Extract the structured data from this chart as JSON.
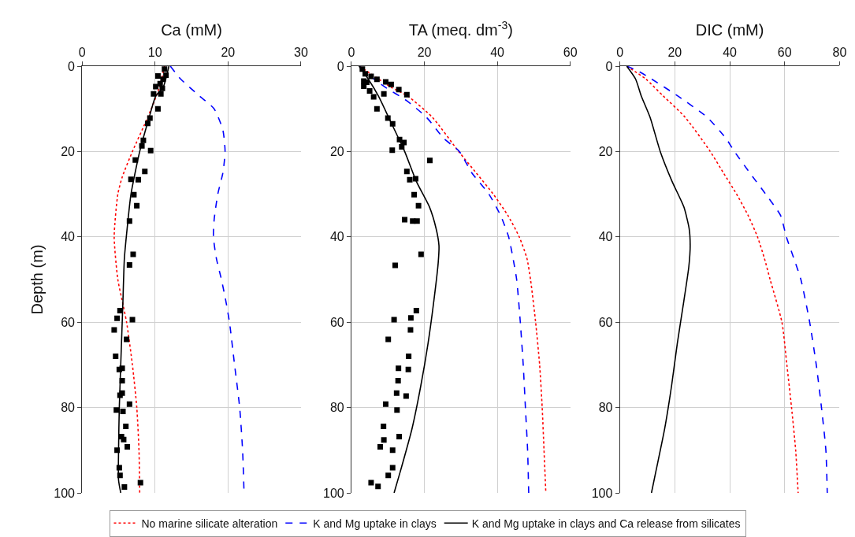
{
  "chart_data": [
    {
      "type": "line",
      "xlabel": "Ca (mM)",
      "ylabel": "Depth (m)",
      "xlim": [
        0,
        30
      ],
      "xticks": [
        0,
        10,
        20,
        30
      ],
      "ylim": [
        100,
        0
      ],
      "yticks": [
        0,
        20,
        40,
        60,
        80,
        100
      ],
      "grid": true,
      "legend": "bottom",
      "series": [
        {
          "name": "No marine silicate alteration",
          "color": "#ff0000",
          "line_style": "dotted",
          "x": [
            11.3,
            10.6,
            9.0,
            6.9,
            5.5,
            4.9,
            4.4,
            4.9,
            5.5,
            6.1,
            6.9,
            7.5,
            7.8,
            7.9
          ],
          "values": [
            0,
            5,
            12,
            20,
            26,
            30,
            40,
            50,
            55,
            60,
            70,
            80,
            90,
            100
          ]
        },
        {
          "name": "K and Mg uptake in clays",
          "color": "#0000ff",
          "line_style": "dashed",
          "x": [
            12.1,
            13.5,
            16.1,
            18.1,
            19.3,
            19.6,
            19.3,
            18.6,
            18.1,
            18.0,
            18.4,
            19.1,
            19.7,
            20.2,
            20.9,
            21.6,
            22.0,
            22.2
          ],
          "values": [
            0,
            3,
            7,
            10,
            15,
            20,
            25,
            30,
            36,
            40,
            45,
            50,
            55,
            60,
            70,
            80,
            90,
            100
          ]
        },
        {
          "name": "K and Mg uptake in clays and Ca release from silicates",
          "color": "#000000",
          "line_style": "solid",
          "x": [
            11.9,
            11.1,
            10.1,
            9.2,
            7.9,
            6.7,
            6.3,
            5.8,
            5.6,
            5.4,
            5.1,
            5.0,
            5.0,
            5.3
          ],
          "values": [
            0,
            5,
            7,
            12,
            20,
            30,
            36,
            45,
            55,
            65,
            80,
            90,
            97,
            100
          ]
        },
        {
          "type": "scatter",
          "color": "#000000",
          "marker": "square",
          "x": [
            11.3,
            11.5,
            10.4,
            11.1,
            10.7,
            10.1,
            11.0,
            9.8,
            10.8,
            10.4,
            9.3,
            9.0,
            8.4,
            8.2,
            9.4,
            7.3,
            8.6,
            6.7,
            7.7,
            7.1,
            7.5,
            6.5,
            7.0,
            6.5,
            5.2,
            4.8,
            6.9,
            4.4,
            6.1,
            4.6,
            5.1,
            5.5,
            5.5,
            5.2,
            5.5,
            6.5,
            4.7,
            5.6,
            6.0,
            5.4,
            5.7,
            6.2,
            4.8,
            5.1,
            5.2,
            8.0,
            5.8
          ],
          "values": [
            0.7,
            2.1,
            2.3,
            3.1,
            4.1,
            4.8,
            5.2,
            6.5,
            6.5,
            10,
            12.2,
            13.4,
            17.4,
            18.7,
            19.8,
            22,
            24.7,
            26.5,
            26.6,
            30.1,
            32.7,
            36.3,
            44.1,
            46.6,
            57.3,
            59.1,
            59.4,
            61.8,
            64,
            68,
            71.1,
            70.8,
            73.7,
            77.1,
            76.6,
            79.2,
            80.6,
            80.9,
            84.4,
            86.8,
            87.5,
            89.2,
            90,
            94.1,
            95.9,
            97.6,
            98.6
          ]
        }
      ]
    },
    {
      "type": "line",
      "xlabel": "TA (meq. dm$^{-3}$)",
      "xlim": [
        0,
        60
      ],
      "xticks": [
        0,
        20,
        40,
        60
      ],
      "ylim": [
        100,
        0
      ],
      "yticks": [
        0,
        20,
        40,
        60,
        80,
        100
      ],
      "grid": true,
      "series": [
        {
          "color": "#ff0000",
          "line_style": "dotted",
          "x": [
            2.2,
            11.0,
            15.4,
            22.2,
            29.4,
            34.2,
            38.9,
            42.9,
            46.0,
            48.1,
            49.1,
            50.5,
            51.6,
            52.3,
            52.8,
            53.3
          ],
          "values": [
            0,
            5,
            7,
            12,
            20,
            25,
            30,
            35,
            40,
            45,
            50,
            60,
            70,
            80,
            90,
            100
          ]
        },
        {
          "color": "#0000ff",
          "line_style": "dashed",
          "x": [
            2.2,
            4.6,
            9.4,
            15.0,
            20.6,
            25.4,
            29.6,
            33.0,
            37.7,
            40.9,
            43.1,
            44.3,
            45.3,
            46.3,
            47.1,
            47.7,
            48.3,
            48.6
          ],
          "values": [
            0,
            2,
            5,
            8,
            12,
            17,
            20,
            25,
            30,
            35,
            40,
            45,
            50,
            60,
            70,
            80,
            90,
            100
          ]
        },
        {
          "color": "#000000",
          "line_style": "solid",
          "x": [
            2.1,
            4.6,
            7.4,
            10.2,
            14.6,
            17.8,
            21.4,
            23.2,
            24.0,
            23.8,
            22.6,
            21.0,
            19.0,
            16.6,
            13.4,
            11.7
          ],
          "values": [
            0,
            3,
            7,
            12,
            20,
            27,
            33,
            38,
            42,
            46,
            55,
            65,
            75,
            85,
            95,
            100
          ]
        },
        {
          "type": "scatter",
          "color": "#000000",
          "marker": "square",
          "x": [
            3.0,
            3.8,
            3.4,
            3.4,
            4.2,
            5.4,
            7.0,
            9.4,
            10.9,
            13.0,
            15.2,
            5.0,
            6.1,
            8.9,
            7.0,
            10.0,
            11.3,
            13.2,
            14.4,
            13.8,
            11.2,
            21.5,
            15.2,
            16.0,
            17.6,
            17.2,
            18.4,
            14.6,
            16.8,
            18.0,
            19.1,
            12.0,
            17.8,
            11.7,
            16.3,
            16.2,
            10.1,
            15.7,
            12.9,
            15.6,
            12.8,
            12.4,
            15.0,
            9.4,
            12.5,
            8.8,
            13.1,
            8.9,
            7.9,
            11.3,
            11.3,
            10.1,
            5.4,
            7.3
          ],
          "values": [
            0.7,
            1.8,
            3.5,
            4.7,
            3.8,
            2.4,
            3.1,
            3.7,
            4.3,
            5.5,
            6.7,
            5.8,
            7.2,
            6.5,
            10,
            12.2,
            13.5,
            17.2,
            17.9,
            18.9,
            19.7,
            22.1,
            24.7,
            26.6,
            26.4,
            30.1,
            32.7,
            36,
            36.3,
            36.3,
            44.1,
            46.7,
            57.3,
            59.4,
            59,
            61.8,
            64,
            68,
            70.8,
            71.1,
            73.7,
            76.6,
            77.3,
            79.2,
            80.6,
            84.4,
            86.8,
            87.6,
            89.2,
            90,
            94.1,
            95.9,
            97.6,
            98.5
          ]
        }
      ]
    },
    {
      "type": "line",
      "xlabel": "DIC (mM)",
      "xlim": [
        0,
        80
      ],
      "xticks": [
        0,
        20,
        40,
        60,
        80
      ],
      "ylim": [
        100,
        0
      ],
      "yticks": [
        0,
        20,
        40,
        60,
        80,
        100
      ],
      "grid": true,
      "series": [
        {
          "color": "#ff0000",
          "line_style": "dotted",
          "x": [
            2.5,
            9.4,
            15.8,
            23.8,
            32.9,
            37.7,
            42.5,
            46.7,
            50.1,
            52.6,
            54.7,
            59.0,
            60.8,
            62.5,
            64.0,
            64.9
          ],
          "values": [
            0,
            3,
            7,
            12,
            20,
            25,
            30,
            35,
            40,
            45,
            50,
            60,
            70,
            80,
            90,
            100
          ]
        },
        {
          "color": "#0000ff",
          "line_style": "dashed",
          "x": [
            2.5,
            6.2,
            11.5,
            21.1,
            31.8,
            38.7,
            41.7,
            47.3,
            53.1,
            58.5,
            60.6,
            63.3,
            65.9,
            69.1,
            71.5,
            73.4,
            75.0,
            75.5
          ],
          "values": [
            0,
            1,
            3,
            7,
            12,
            17,
            20,
            25,
            30,
            35,
            40,
            45,
            50,
            60,
            70,
            80,
            90,
            100
          ]
        },
        {
          "color": "#000000",
          "line_style": "solid",
          "x": [
            2.5,
            5.7,
            7.8,
            11.0,
            14.7,
            19.0,
            23.3,
            25.2,
            25.6,
            25.1,
            23.3,
            20.9,
            18.8,
            16.3,
            13.1,
            11.5
          ],
          "values": [
            0,
            3,
            7,
            12,
            20,
            27,
            33,
            38,
            42,
            47,
            55,
            65,
            75,
            85,
            95,
            100
          ]
        }
      ]
    }
  ]
}
